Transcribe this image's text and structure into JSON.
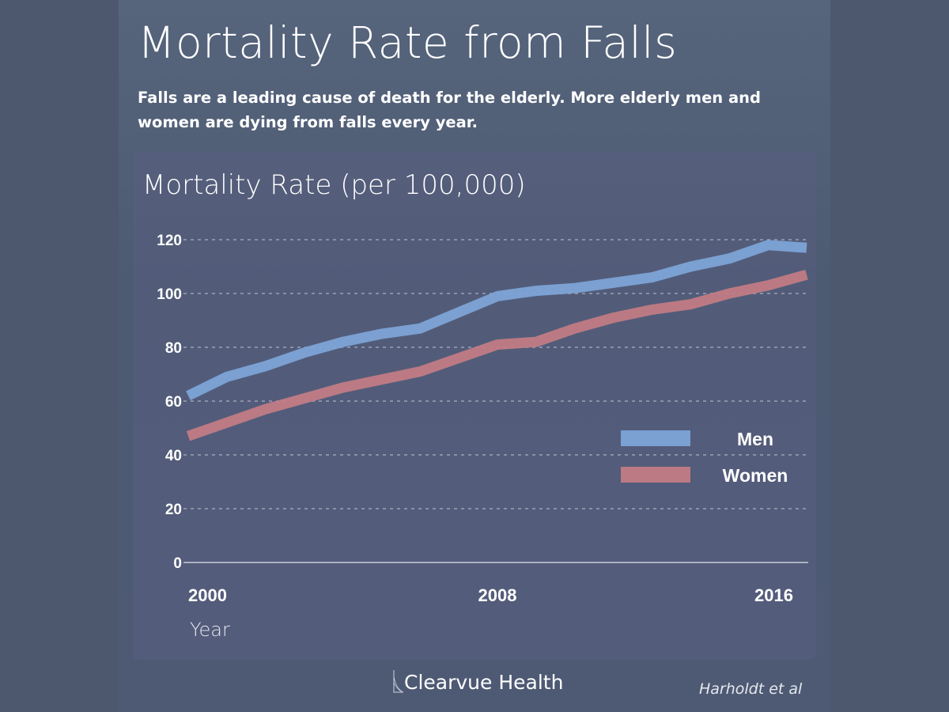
{
  "title": "Mortality Rate from Falls",
  "subtitle": "Falls are a leading cause of death for the elderly. More elderly men and women are dying from falls every year.",
  "brand": "Clearvue Health",
  "source": "Harholdt et al",
  "chart_data": {
    "type": "line",
    "title": "Mortality Rate (per 100,000)",
    "xlabel": "Year",
    "ylabel": "Mortality Rate (per 100,000)",
    "x": [
      2000,
      2001,
      2002,
      2003,
      2004,
      2005,
      2006,
      2007,
      2008,
      2009,
      2010,
      2011,
      2012,
      2013,
      2014,
      2015,
      2016
    ],
    "ylim": [
      0,
      120
    ],
    "yticks": [
      "0",
      "20",
      "40",
      "60",
      "80",
      "100",
      "120"
    ],
    "xticks": [
      "2000",
      "2008",
      "2016"
    ],
    "grid": true,
    "legend_position": "bottom-right",
    "series": [
      {
        "name": "Men",
        "color": "#7fa6d9",
        "values": [
          62,
          69,
          73,
          78,
          82,
          85,
          87,
          93,
          99,
          101,
          102,
          104,
          106,
          110,
          113,
          118,
          117
        ]
      },
      {
        "name": "Women",
        "color": "#c47d84",
        "values": [
          47,
          52,
          57,
          61,
          65,
          68,
          71,
          76,
          81,
          82,
          87,
          91,
          94,
          96,
          100,
          103,
          107
        ]
      }
    ]
  }
}
